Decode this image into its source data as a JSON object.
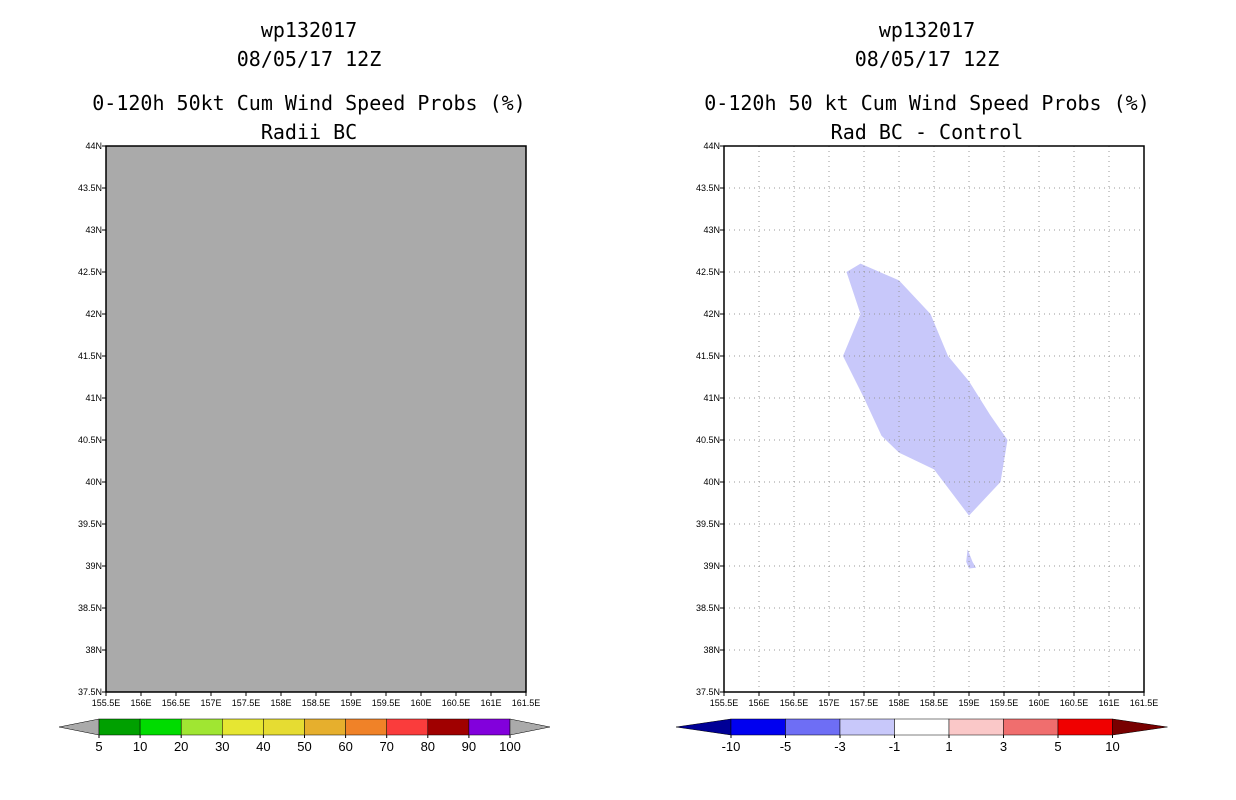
{
  "chart_data": [
    {
      "type": "heatmap",
      "storm_id": "wp132017",
      "datetime": "08/05/17 12Z",
      "title": "0-120h 50kt Cum Wind Speed Probs (%)",
      "subtitle": "Radii BC",
      "xlim": [
        155.5,
        161.5
      ],
      "ylim": [
        37.5,
        44
      ],
      "x_ticks": [
        "155.5E",
        "156E",
        "156.5E",
        "157E",
        "157.5E",
        "158E",
        "158.5E",
        "159E",
        "159.5E",
        "160E",
        "160.5E",
        "161E",
        "161.5E"
      ],
      "y_ticks": [
        "37.5N",
        "38N",
        "38.5N",
        "39N",
        "39.5N",
        "40N",
        "40.5N",
        "41N",
        "41.5N",
        "42N",
        "42.5N",
        "43N",
        "43.5N",
        "44N"
      ],
      "background_color": "#aaaaaa",
      "grid": false,
      "colorbar": {
        "labels": [
          "5",
          "10",
          "20",
          "30",
          "40",
          "50",
          "60",
          "70",
          "80",
          "90",
          "100"
        ],
        "colors": [
          "#00a000",
          "#00dc00",
          "#a0e632",
          "#e6e632",
          "#e6dc32",
          "#e6af2d",
          "#f08228",
          "#fa3c3c",
          "#a00000",
          "#8200dc"
        ],
        "under_color": "#aaaaaa",
        "over_color": "#aaaaaa"
      }
    },
    {
      "type": "heatmap",
      "storm_id": "wp132017",
      "datetime": "08/05/17 12Z",
      "title": "0-120h 50 kt Cum Wind Speed Probs (%)",
      "subtitle": "Rad BC - Control",
      "xlim": [
        155.5,
        161.5
      ],
      "ylim": [
        37.5,
        44
      ],
      "x_ticks": [
        "155.5E",
        "156E",
        "156.5E",
        "157E",
        "157.5E",
        "158E",
        "158.5E",
        "159E",
        "159.5E",
        "160E",
        "160.5E",
        "161E",
        "161.5E"
      ],
      "y_ticks": [
        "37.5N",
        "38N",
        "38.5N",
        "39N",
        "39.5N",
        "40N",
        "40.5N",
        "41N",
        "41.5N",
        "42N",
        "42.5N",
        "43N",
        "43.5N",
        "44N"
      ],
      "grid": true,
      "regions": [
        {
          "range": "-3 to -1",
          "color": "#c8c8fa",
          "polygon": [
            [
              157.25,
              42.5
            ],
            [
              157.45,
              42.6
            ],
            [
              158.0,
              42.4
            ],
            [
              158.45,
              42.0
            ],
            [
              158.7,
              41.5
            ],
            [
              159.0,
              41.2
            ],
            [
              159.3,
              40.8
            ],
            [
              159.55,
              40.5
            ],
            [
              159.45,
              40.0
            ],
            [
              159.0,
              39.6
            ],
            [
              158.5,
              40.15
            ],
            [
              158.0,
              40.35
            ],
            [
              157.75,
              40.55
            ],
            [
              157.5,
              41.0
            ],
            [
              157.2,
              41.5
            ],
            [
              157.45,
              42.0
            ]
          ]
        },
        {
          "range": "-3 to -1",
          "color": "#c8c8fa",
          "polygon": [
            [
              158.98,
              39.2
            ],
            [
              159.05,
              39.05
            ],
            [
              159.1,
              38.98
            ],
            [
              159.0,
              38.97
            ],
            [
              158.96,
              39.05
            ]
          ]
        }
      ],
      "colorbar": {
        "labels": [
          "-10",
          "-5",
          "-3",
          "-1",
          "1",
          "3",
          "5",
          "10"
        ],
        "colors": [
          "#0000f0",
          "#6e6ef5",
          "#c8c8fa",
          "#ffffff",
          "#fac8c8",
          "#f06e6e",
          "#f00000"
        ],
        "under_color": "#000096",
        "over_color": "#780000"
      }
    }
  ]
}
